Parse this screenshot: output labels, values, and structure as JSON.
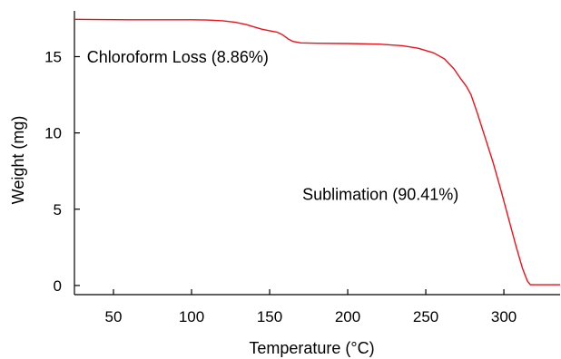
{
  "chart_data": {
    "type": "line",
    "title": "",
    "xlabel": "Temperature (°C)",
    "ylabel": "Weight (mg)",
    "xlim": [
      25,
      336
    ],
    "ylim": [
      -0.6,
      18.0
    ],
    "xticks": [
      50,
      100,
      150,
      200,
      250,
      300
    ],
    "yticks": [
      0,
      5,
      10,
      15
    ],
    "grid": false,
    "legend": "none",
    "line_color": "#e8141c",
    "series": [
      {
        "x": [
          25,
          40,
          60,
          80,
          100,
          110,
          120,
          128,
          135,
          140,
          145,
          150,
          155,
          158,
          160,
          162,
          165,
          170,
          180,
          200,
          220,
          235,
          245,
          255,
          262,
          268,
          272,
          276,
          279,
          283,
          288,
          293,
          298,
          303,
          308,
          312,
          315,
          317,
          318,
          320,
          330,
          336
        ],
        "y": [
          17.45,
          17.43,
          17.42,
          17.42,
          17.42,
          17.4,
          17.35,
          17.25,
          17.1,
          16.95,
          16.8,
          16.7,
          16.6,
          16.45,
          16.3,
          16.15,
          16.0,
          15.9,
          15.88,
          15.86,
          15.82,
          15.72,
          15.55,
          15.25,
          14.85,
          14.2,
          13.6,
          13.05,
          12.5,
          11.3,
          9.7,
          8.1,
          6.3,
          4.4,
          2.5,
          1.1,
          0.3,
          0.05,
          0.05,
          0.05,
          0.05,
          0.05
        ]
      }
    ],
    "annotations": [
      {
        "text": "Chloroform Loss (8.86%)",
        "x": 33,
        "y": 14.6
      },
      {
        "text": "Sublimation (90.41%)",
        "x": 171,
        "y": 5.6
      }
    ]
  }
}
